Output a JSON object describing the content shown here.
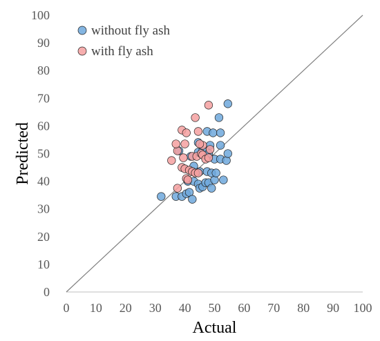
{
  "chart_data": {
    "type": "scatter",
    "xlabel": "Actual",
    "ylabel": "Predicted",
    "xlim": [
      0,
      100
    ],
    "ylim": [
      0,
      100
    ],
    "xticks": [
      0,
      10,
      20,
      30,
      40,
      50,
      60,
      70,
      80,
      90,
      100
    ],
    "yticks": [
      0,
      10,
      20,
      30,
      40,
      50,
      60,
      70,
      80,
      90,
      100
    ],
    "grid": false,
    "reference_line": "y = x",
    "legend_position": "top-left",
    "series": [
      {
        "name": "without fly ash",
        "color": "#6fa8dc",
        "points": [
          [
            32,
            34.5
          ],
          [
            37,
            34.5
          ],
          [
            39,
            34.5
          ],
          [
            40.5,
            35.5
          ],
          [
            41.5,
            36
          ],
          [
            42.5,
            33.5
          ],
          [
            41,
            40
          ],
          [
            43,
            40
          ],
          [
            44.5,
            39
          ],
          [
            45,
            37.5
          ],
          [
            46,
            38
          ],
          [
            47,
            39.5
          ],
          [
            48,
            39.5
          ],
          [
            49,
            37.5
          ],
          [
            50,
            40.5
          ],
          [
            53,
            40.5
          ],
          [
            45,
            43.5
          ],
          [
            47.5,
            43.5
          ],
          [
            49,
            43
          ],
          [
            50.5,
            43
          ],
          [
            42,
            49
          ],
          [
            44.5,
            50.5
          ],
          [
            46,
            51
          ],
          [
            48,
            50
          ],
          [
            50,
            48
          ],
          [
            52,
            48
          ],
          [
            54,
            47.5
          ],
          [
            54.5,
            50
          ],
          [
            44.5,
            54
          ],
          [
            48.5,
            53
          ],
          [
            52,
            53
          ],
          [
            47.5,
            58
          ],
          [
            49.5,
            57.5
          ],
          [
            52,
            57.5
          ],
          [
            51.5,
            63
          ],
          [
            54.5,
            68
          ],
          [
            38,
            51
          ],
          [
            43,
            45.5
          ]
        ]
      },
      {
        "name": "with fly ash",
        "color": "#f4a0a0",
        "points": [
          [
            35.5,
            47.5
          ],
          [
            37.5,
            51
          ],
          [
            37,
            53.5
          ],
          [
            39,
            58.5
          ],
          [
            40.5,
            57.5
          ],
          [
            40,
            53.5
          ],
          [
            43.5,
            63
          ],
          [
            44.5,
            58
          ],
          [
            48,
            67.5
          ],
          [
            39,
            45
          ],
          [
            40,
            44.5
          ],
          [
            41.5,
            44
          ],
          [
            42.5,
            43.5
          ],
          [
            43.5,
            43
          ],
          [
            44.5,
            43
          ],
          [
            40.5,
            41
          ],
          [
            41,
            40.5
          ],
          [
            42.5,
            49
          ],
          [
            44,
            49
          ],
          [
            45.5,
            50
          ],
          [
            46,
            49.5
          ],
          [
            47,
            48
          ],
          [
            48,
            48.5
          ],
          [
            48.5,
            51.5
          ],
          [
            46,
            53
          ],
          [
            45,
            53.5
          ],
          [
            37.5,
            37.5
          ],
          [
            39.5,
            48.5
          ]
        ]
      }
    ]
  }
}
